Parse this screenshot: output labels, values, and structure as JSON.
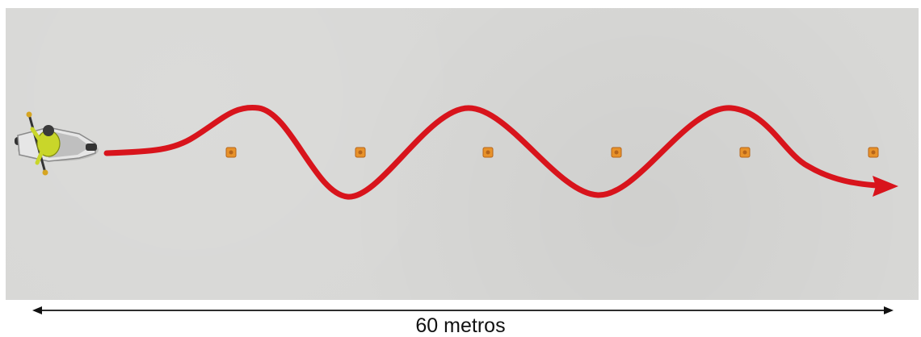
{
  "course": {
    "distance_label": "60 metros",
    "cone_count": 6,
    "colors": {
      "ground": "#d8d8d6",
      "path": "#d8141c",
      "cone": "#e8922a",
      "cone_dark": "#b5641a",
      "measure_line": "#111111",
      "rider_jacket": "#c9d62a",
      "bike_body": "#e6e6e6"
    },
    "icons": {
      "rider": "motorcycle-rider-icon",
      "cone": "traffic-cone-icon",
      "path_arrow": "arrow-right-icon"
    }
  }
}
